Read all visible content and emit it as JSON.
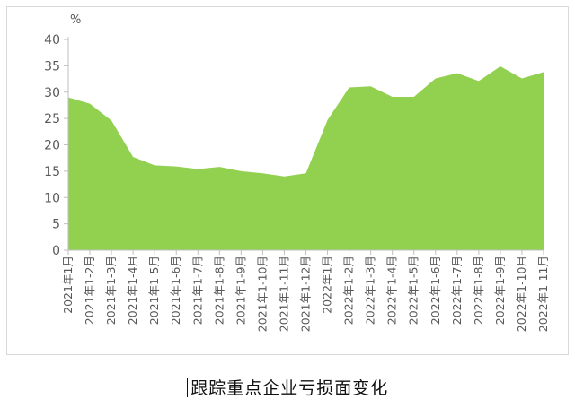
{
  "caption": "跟踪重点企业亏损面变化",
  "chart_data": {
    "type": "area",
    "unit_label": "%",
    "ylim": [
      0,
      40
    ],
    "yticks": [
      0,
      5,
      10,
      15,
      20,
      25,
      30,
      35,
      40
    ],
    "grid": false,
    "legend": "none",
    "categories": [
      "2021年1月",
      "2021年1-2月",
      "2021年1-3月",
      "2021年1-4月",
      "2021年1-5月",
      "2021年1-6月",
      "2021年1-7月",
      "2021年1-8月",
      "2021年1-9月",
      "2021年1-10月",
      "2021年1-11月",
      "2021年1-12月",
      "2022年1月",
      "2022年1-2月",
      "2022年1-3月",
      "2022年1-4月",
      "2022年1-5月",
      "2022年1-6月",
      "2022年1-7月",
      "2022年1-8月",
      "2022年1-9月",
      "2022年1-10月",
      "2022年1-11月"
    ],
    "series": [
      {
        "values": [
          29.0,
          27.8,
          24.6,
          17.7,
          16.1,
          15.9,
          15.4,
          15.8,
          15.0,
          14.6,
          14.0,
          14.6,
          24.7,
          30.9,
          31.1,
          29.1,
          29.1,
          32.6,
          33.6,
          32.1,
          34.9,
          32.6,
          33.8
        ],
        "color": "#92d050"
      }
    ],
    "axis_color": "#bfbfbf",
    "tick_color": "#595959"
  }
}
